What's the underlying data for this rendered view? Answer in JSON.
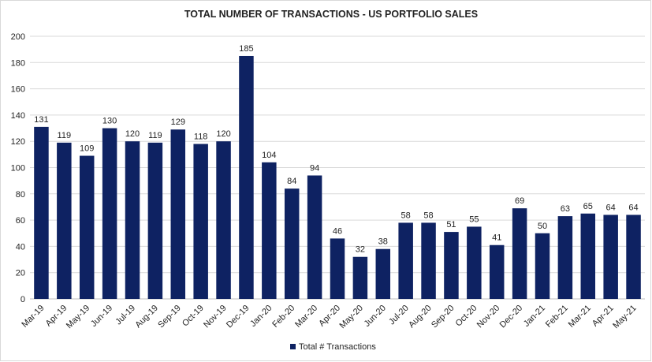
{
  "chart_data": {
    "type": "bar",
    "title": "TOTAL NUMBER OF TRANSACTIONS - US PORTFOLIO SALES",
    "categories": [
      "Mar-19",
      "Apr-19",
      "May-19",
      "Jun-19",
      "Jul-19",
      "Aug-19",
      "Sep-19",
      "Oct-19",
      "Nov-19",
      "Dec-19",
      "Jan-20",
      "Feb-20",
      "Mar-20",
      "Apr-20",
      "May-20",
      "Jun-20",
      "Jul-20",
      "Aug-20",
      "Sep-20",
      "Oct-20",
      "Nov-20",
      "Dec-20",
      "Jan-21",
      "Feb-21",
      "Mar-21",
      "Apr-21",
      "May-21"
    ],
    "series": [
      {
        "name": "Total # Transactions",
        "color": "#0e2262",
        "values": [
          131,
          119,
          109,
          130,
          120,
          119,
          129,
          118,
          120,
          185,
          104,
          84,
          94,
          46,
          32,
          38,
          58,
          58,
          51,
          55,
          41,
          69,
          50,
          63,
          65,
          64,
          64
        ]
      }
    ],
    "ylim": [
      0,
      200
    ],
    "yticks": [
      0,
      20,
      40,
      60,
      80,
      100,
      120,
      140,
      160,
      180,
      200
    ],
    "grid": true,
    "legend": "bottom"
  }
}
